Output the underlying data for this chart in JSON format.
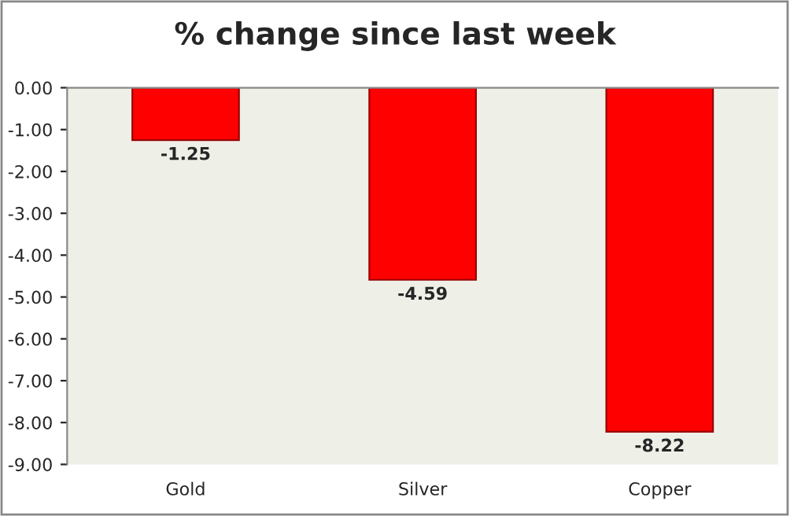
{
  "chart_data": {
    "type": "bar",
    "title": "% change since last week",
    "categories": [
      "Gold",
      "Silver",
      "Copper"
    ],
    "series": [
      {
        "color": "#ff0000",
        "values": [
          -1.25,
          -4.59,
          -8.22
        ]
      }
    ],
    "data_labels": true,
    "ylim": [
      -9,
      0
    ],
    "yticks": [
      {
        "value": 0,
        "label": "0.00"
      },
      {
        "value": -1,
        "label": "-1.00"
      },
      {
        "value": -2,
        "label": "-2.00"
      },
      {
        "value": -3,
        "label": "-3.00"
      },
      {
        "value": -4,
        "label": "-4.00"
      },
      {
        "value": -5,
        "label": "-5.00"
      },
      {
        "value": -6,
        "label": "-6.00"
      },
      {
        "value": -7,
        "label": "-7.00"
      },
      {
        "value": -8,
        "label": "-8.00"
      },
      {
        "value": -9,
        "label": "-9.00"
      }
    ],
    "grid": false,
    "legend": false
  }
}
